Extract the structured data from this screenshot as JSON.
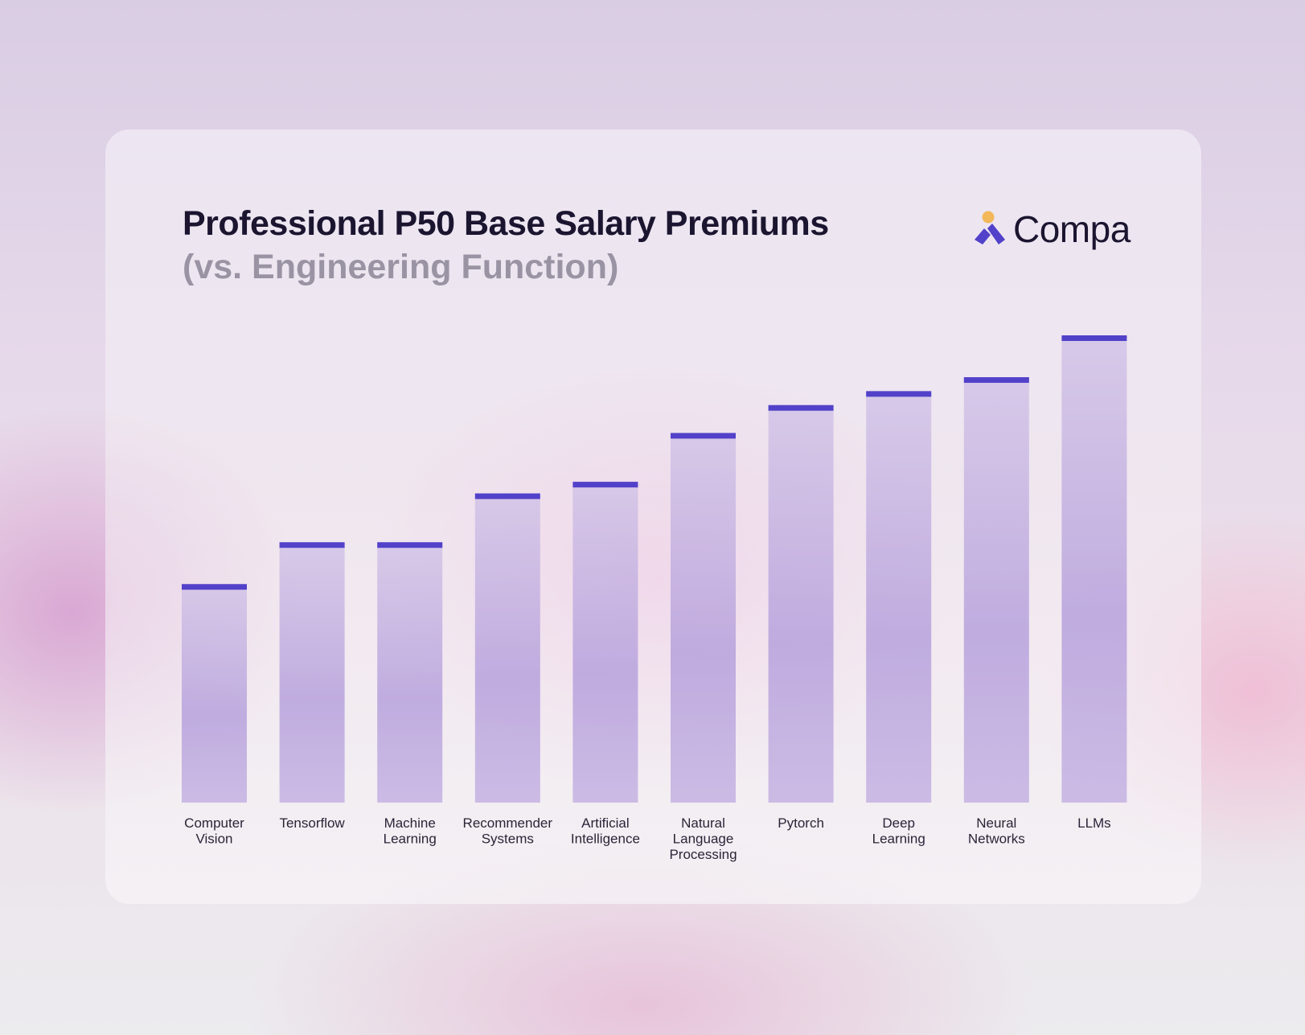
{
  "header": {
    "title": "Professional P50 Base Salary Premiums",
    "subtitle": "(vs. Engineering Function)"
  },
  "brand": {
    "name": "Compa",
    "icon": "compa-logo-icon",
    "colors": {
      "accent": "#5241c9",
      "dot": "#f2b85a",
      "bar_fill": "#b9a4dc"
    }
  },
  "chart_data": {
    "type": "bar",
    "title": "Professional P50 Base Salary Premiums",
    "subtitle": "(vs. Engineering Function)",
    "xlabel": "",
    "ylabel": "",
    "grid": false,
    "categories": [
      [
        "Computer",
        "Vision"
      ],
      [
        "Tensorflow"
      ],
      [
        "Machine",
        "Learning"
      ],
      [
        "Recommender",
        "Systems"
      ],
      [
        "Artificial",
        "Intelligence"
      ],
      [
        "Natural",
        "Language",
        "Processing"
      ],
      [
        "Pytorch"
      ],
      [
        "Deep",
        "Learning"
      ],
      [
        "Neural",
        "Networks"
      ],
      [
        "LLMs"
      ]
    ],
    "values": [
      47,
      56,
      56,
      66.5,
      69,
      79.5,
      85.5,
      88.5,
      91.5,
      100.5
    ],
    "ylim": [
      0,
      100.5
    ]
  }
}
